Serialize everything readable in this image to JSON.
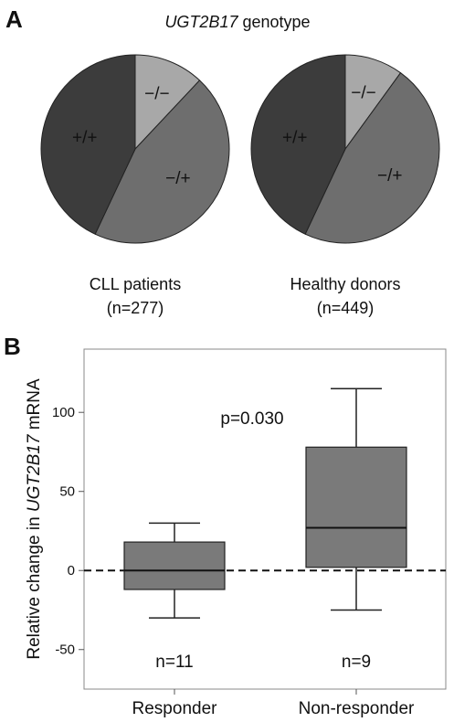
{
  "panel_a": {
    "letter": "A",
    "title_gene": "UGT2B17",
    "title_rest": " genotype"
  },
  "panel_b": {
    "letter": "B"
  },
  "chart_data": [
    {
      "type": "pie",
      "title": "UGT2B17 genotype",
      "groups": [
        {
          "name": "CLL patients",
          "n_label": "(n=277)",
          "slices": [
            {
              "label": "−/−",
              "fraction": 0.12,
              "color": "#a8a8a8"
            },
            {
              "label": "−/+",
              "fraction": 0.45,
              "color": "#6e6e6e"
            },
            {
              "label": "+/+",
              "fraction": 0.43,
              "color": "#3c3c3c"
            }
          ]
        },
        {
          "name": "Healthy donors",
          "n_label": "(n=449)",
          "slices": [
            {
              "label": "−/−",
              "fraction": 0.1,
              "color": "#a8a8a8"
            },
            {
              "label": "−/+",
              "fraction": 0.47,
              "color": "#6e6e6e"
            },
            {
              "label": "+/+",
              "fraction": 0.43,
              "color": "#3c3c3c"
            }
          ]
        }
      ]
    },
    {
      "type": "box",
      "ylabel_pre": "Relative change in ",
      "ylabel_gene": "UGT2B17",
      "ylabel_post": " mRNA",
      "ylim": [
        -75,
        140
      ],
      "yticks": [
        -50,
        0,
        50,
        100
      ],
      "ytick_labels": [
        "-50",
        "0",
        "50",
        "100"
      ],
      "reference_line": 0,
      "annotation": "p=0.030",
      "box_color": "#7a7a7a",
      "categories": [
        "Responder",
        "Non-responder"
      ],
      "boxes": [
        {
          "name": "Responder",
          "whisker_low": -30,
          "q1": -12,
          "median": 0,
          "q3": 18,
          "whisker_high": 30,
          "n_label": "n=11"
        },
        {
          "name": "Non-responder",
          "whisker_low": -25,
          "q1": 2,
          "median": 27,
          "q3": 78,
          "whisker_high": 115,
          "n_label": "n=9"
        }
      ]
    }
  ]
}
